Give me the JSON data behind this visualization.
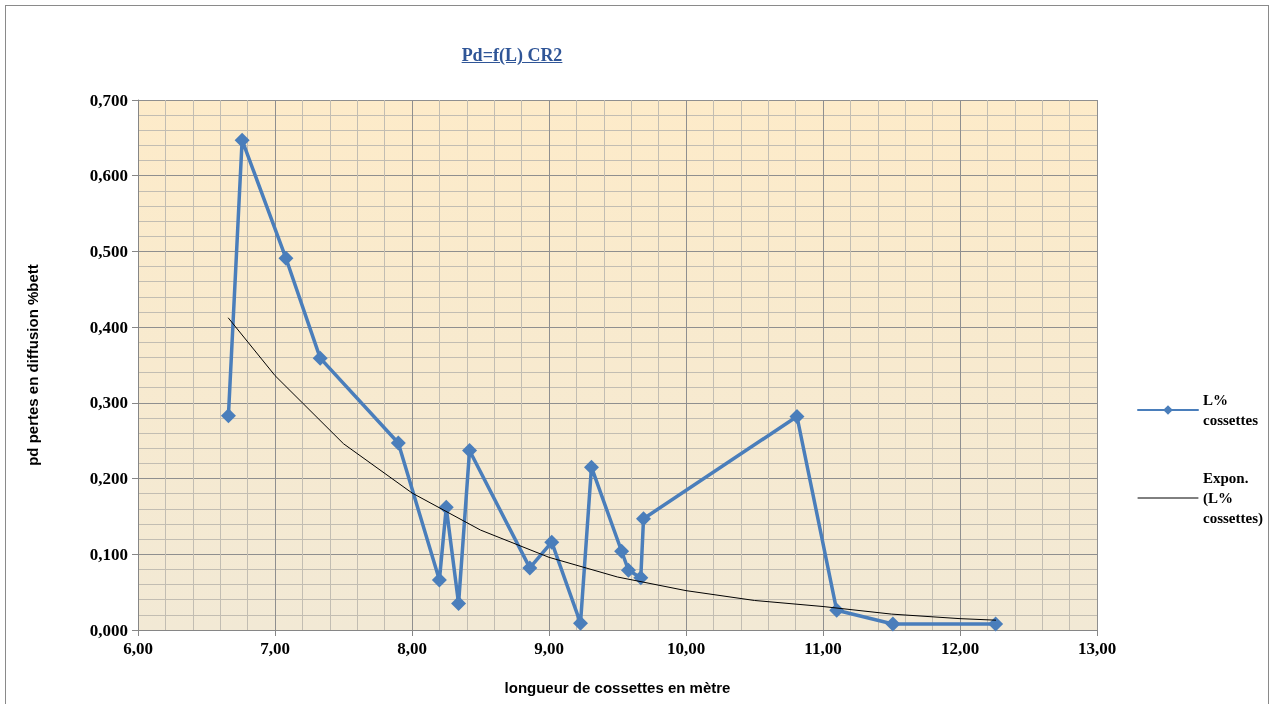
{
  "chart_data": {
    "type": "line",
    "title": "Pd=f(L) CR2",
    "xlabel": "longueur de cossettes en mètre",
    "ylabel": "pd pertes en diffusion %bett",
    "xlim": [
      6,
      13
    ],
    "xticks": [
      {
        "value": 6,
        "label": "6,00"
      },
      {
        "value": 7,
        "label": "7,00"
      },
      {
        "value": 8,
        "label": "8,00"
      },
      {
        "value": 9,
        "label": "9,00"
      },
      {
        "value": 10,
        "label": "10,00"
      },
      {
        "value": 11,
        "label": "11,00"
      },
      {
        "value": 12,
        "label": "12,00"
      },
      {
        "value": 13,
        "label": "13,00"
      }
    ],
    "ylim": [
      0,
      0.7
    ],
    "yticks": [
      {
        "value": 0,
        "label": "0,000"
      },
      {
        "value": 0.1,
        "label": "0,100"
      },
      {
        "value": 0.2,
        "label": "0,200"
      },
      {
        "value": 0.3,
        "label": "0,300"
      },
      {
        "value": 0.4,
        "label": "0,400"
      },
      {
        "value": 0.5,
        "label": "0,500"
      },
      {
        "value": 0.6,
        "label": "0,600"
      },
      {
        "value": 0.7,
        "label": "0,700"
      }
    ],
    "grid": true,
    "legend": "right",
    "marker": "diamond",
    "series": [
      {
        "name": "L% cossettes",
        "color": "#4a7ebb",
        "x": [
          6.66,
          6.76,
          7.08,
          7.33,
          7.9,
          8.2,
          8.25,
          8.34,
          8.42,
          8.86,
          9.02,
          9.23,
          9.31,
          9.53,
          9.58,
          9.67,
          9.69,
          10.81,
          11.1,
          11.51,
          12.26
        ],
        "values": [
          0.283,
          0.647,
          0.491,
          0.359,
          0.247,
          0.066,
          0.162,
          0.035,
          0.237,
          0.082,
          0.116,
          0.009,
          0.215,
          0.104,
          0.079,
          0.069,
          0.147,
          0.282,
          0.026,
          0.008,
          0.008
        ]
      },
      {
        "name": "Expon. (L% cossettes)",
        "type": "line",
        "color": "#000000",
        "marker": "none",
        "x": [
          6.66,
          7,
          7.5,
          8,
          8.5,
          9,
          9.5,
          10,
          10.5,
          11,
          11.5,
          12,
          12.26
        ],
        "values": [
          0.412,
          0.336,
          0.246,
          0.181,
          0.132,
          0.096,
          0.07,
          0.052,
          0.039,
          0.031,
          0.021,
          0.015,
          0.013
        ]
      }
    ]
  }
}
